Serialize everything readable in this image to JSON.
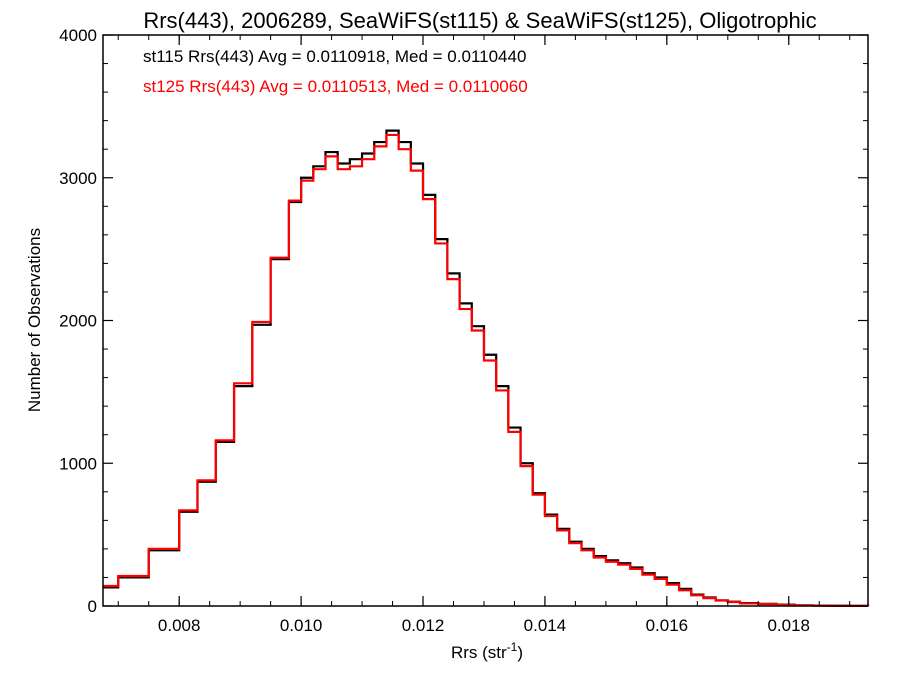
{
  "chart_data": {
    "type": "line",
    "title": "Rrs(443), 2006289, SeaWiFS(st115) & SeaWiFS(st125), Oligotrophic",
    "xlabel": "Rrs (str",
    "xlabel_sup": "-1",
    "xlabel_suffix": ")",
    "ylabel": "Number of Observations",
    "xlim": [
      0.00675,
      0.0193
    ],
    "ylim": [
      0,
      4000
    ],
    "x_ticks": [
      0.008,
      0.01,
      0.012,
      0.014,
      0.016,
      0.018
    ],
    "x_tick_labels": [
      "0.008",
      "0.010",
      "0.012",
      "0.014",
      "0.016",
      "0.018"
    ],
    "y_ticks": [
      0,
      1000,
      2000,
      3000,
      4000
    ],
    "y_tick_labels": [
      "0",
      "1000",
      "2000",
      "3000",
      "4000"
    ],
    "grid": false,
    "annotations": [
      {
        "text": "st115 Rrs(443) Avg = 0.0110918, Med = 0.0110440",
        "color": "#000000"
      },
      {
        "text": "st125 Rrs(443) Avg = 0.0110513, Med = 0.0110060",
        "color": "#ff0000"
      }
    ],
    "series": [
      {
        "color": "#000000",
        "x": [
          0.00675,
          0.007,
          0.0075,
          0.008,
          0.0083,
          0.0086,
          0.0089,
          0.0092,
          0.0095,
          0.0098,
          0.01,
          0.0102,
          0.0104,
          0.0106,
          0.0108,
          0.011,
          0.0112,
          0.0114,
          0.0116,
          0.0118,
          0.012,
          0.0122,
          0.0124,
          0.0126,
          0.0128,
          0.013,
          0.0132,
          0.0134,
          0.0136,
          0.0138,
          0.014,
          0.0142,
          0.0144,
          0.0146,
          0.0148,
          0.015,
          0.0152,
          0.0154,
          0.0156,
          0.0158,
          0.016,
          0.0162,
          0.0164,
          0.0166,
          0.0168,
          0.017,
          0.0172,
          0.0175,
          0.0178,
          0.0181,
          0.0184,
          0.0187,
          0.019,
          0.0193
        ],
        "y": [
          130,
          200,
          390,
          660,
          870,
          1150,
          1540,
          1970,
          2430,
          2830,
          3000,
          3080,
          3180,
          3100,
          3130,
          3170,
          3250,
          3330,
          3250,
          3100,
          2880,
          2570,
          2330,
          2120,
          1960,
          1760,
          1540,
          1250,
          1000,
          790,
          640,
          540,
          450,
          400,
          350,
          320,
          300,
          270,
          230,
          200,
          160,
          120,
          80,
          60,
          40,
          30,
          20,
          15,
          10,
          5,
          3,
          2,
          1,
          0
        ]
      },
      {
        "color": "#ff0000",
        "x": [
          0.00675,
          0.007,
          0.0075,
          0.008,
          0.0083,
          0.0086,
          0.0089,
          0.0092,
          0.0095,
          0.0098,
          0.01,
          0.0102,
          0.0104,
          0.0106,
          0.0108,
          0.011,
          0.0112,
          0.0114,
          0.0116,
          0.0118,
          0.012,
          0.0122,
          0.0124,
          0.0126,
          0.0128,
          0.013,
          0.0132,
          0.0134,
          0.0136,
          0.0138,
          0.014,
          0.0142,
          0.0144,
          0.0146,
          0.0148,
          0.015,
          0.0152,
          0.0154,
          0.0156,
          0.0158,
          0.016,
          0.0162,
          0.0164,
          0.0166,
          0.0168,
          0.017,
          0.0172,
          0.0175,
          0.0178,
          0.0181,
          0.0184,
          0.0187,
          0.019,
          0.0193
        ],
        "y": [
          140,
          210,
          400,
          670,
          880,
          1160,
          1560,
          1990,
          2440,
          2840,
          2980,
          3060,
          3150,
          3060,
          3080,
          3130,
          3220,
          3300,
          3200,
          3050,
          2850,
          2540,
          2290,
          2080,
          1930,
          1720,
          1510,
          1220,
          980,
          780,
          630,
          530,
          440,
          390,
          340,
          310,
          290,
          260,
          220,
          190,
          150,
          110,
          75,
          55,
          38,
          28,
          18,
          13,
          8,
          4,
          2,
          1,
          1,
          0
        ]
      }
    ]
  }
}
